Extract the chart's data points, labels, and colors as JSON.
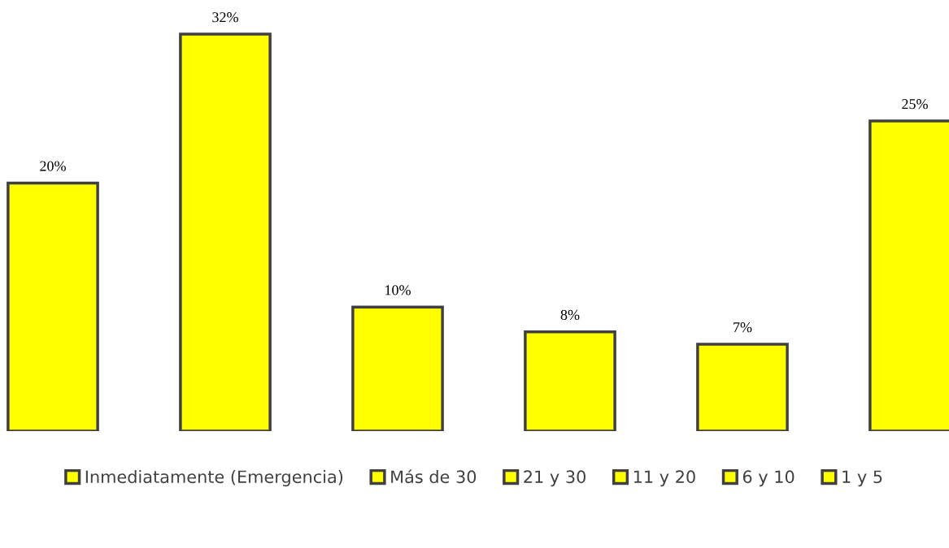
{
  "chart_data": {
    "type": "bar",
    "categories": [
      null,
      null,
      null,
      null,
      null,
      null
    ],
    "series": [
      {
        "name": "Inmediatamente (Emergencia)",
        "color": "#ffff00",
        "values": [
          20,
          null,
          null,
          null,
          null,
          null
        ],
        "value_labels": [
          "20%",
          null,
          null,
          null,
          null,
          null
        ]
      },
      {
        "name": "Más de 30",
        "color": "#ffff00",
        "values": [
          null,
          32,
          null,
          null,
          null,
          null
        ],
        "value_labels": [
          null,
          "32%",
          null,
          null,
          null,
          null
        ]
      },
      {
        "name": "21 y 30",
        "color": "#ffff00",
        "values": [
          null,
          null,
          10,
          null,
          null,
          null
        ],
        "value_labels": [
          null,
          null,
          "10%",
          null,
          null,
          null
        ]
      },
      {
        "name": "11 y 20",
        "color": "#ffff00",
        "values": [
          null,
          null,
          null,
          8,
          null,
          null
        ],
        "value_labels": [
          null,
          null,
          null,
          "8%",
          null,
          null
        ]
      },
      {
        "name": "6 y 10",
        "color": "#ffff00",
        "values": [
          null,
          null,
          null,
          null,
          7,
          null
        ],
        "value_labels": [
          null,
          null,
          null,
          null,
          "7%",
          null
        ]
      },
      {
        "name": "1 y 5",
        "color": "#ffff00",
        "values": [
          null,
          null,
          null,
          null,
          null,
          25
        ],
        "value_labels": [
          null,
          null,
          null,
          null,
          null,
          "25%"
        ]
      }
    ],
    "stacked": true,
    "legend": "bottom"
  }
}
